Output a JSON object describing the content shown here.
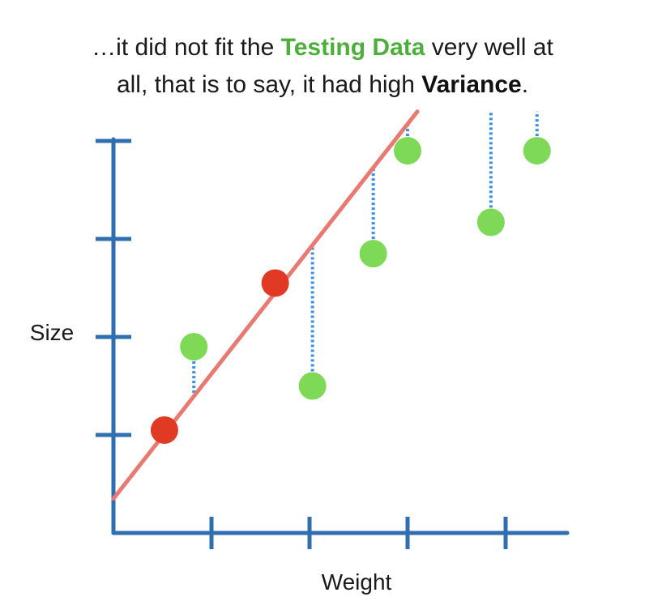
{
  "caption": {
    "part1": "…it did not fit the ",
    "highlight1": "Testing Data",
    "part2": " very well at",
    "line2_part1": "all, that is to say, it had high ",
    "highlight2": "Variance",
    "line2_end": "."
  },
  "chart_data": {
    "type": "scatter",
    "xlabel": "Weight",
    "ylabel": "Size",
    "xlim": [
      0,
      4.6
    ],
    "ylim": [
      0,
      4.1
    ],
    "x_ticks": [
      1,
      2,
      3,
      4
    ],
    "y_ticks": [
      1,
      2,
      3,
      4
    ],
    "grid": false,
    "series": [
      {
        "color": "#e03a24",
        "points": [
          [
            0.52,
            1.05
          ],
          [
            1.65,
            2.55
          ]
        ]
      },
      {
        "color": "#7ed957",
        "points": [
          [
            0.82,
            1.9
          ],
          [
            2.03,
            1.5
          ],
          [
            2.65,
            2.85
          ],
          [
            3.0,
            3.9
          ],
          [
            3.85,
            3.17
          ],
          [
            4.32,
            3.9
          ]
        ]
      }
    ],
    "fit_line": {
      "color": "#e87a72",
      "x": [
        0,
        3.1
      ],
      "y": [
        0.35,
        4.3
      ]
    },
    "residuals": {
      "color": "#3b8fe0",
      "style": "dotted"
    },
    "axis_color": "#2f6fb0"
  }
}
